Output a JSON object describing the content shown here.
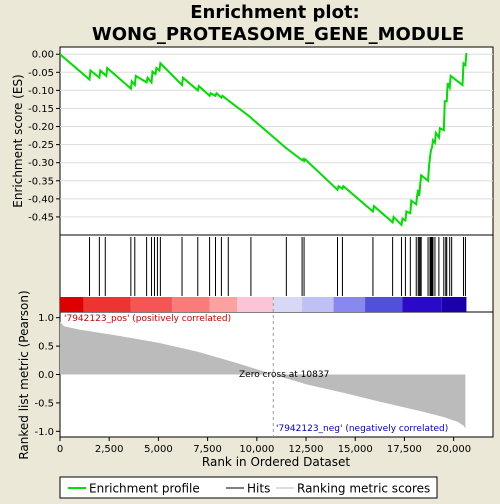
{
  "chart_data": {
    "type": "line",
    "title_line1": "Enrichment plot:",
    "title_line2": "WONG_PROTEASOME_GENE_MODULE",
    "top_panel": {
      "ylabel": "Enrichment score (ES)",
      "ylim": [
        -0.5,
        0.02
      ],
      "yticks": [
        0.0,
        -0.05,
        -0.1,
        -0.15,
        -0.2,
        -0.25,
        -0.3,
        -0.35,
        -0.4,
        -0.45
      ],
      "ytick_labels": [
        "0.00",
        "-0.05",
        "-0.10",
        "-0.15",
        "-0.20",
        "-0.25",
        "-0.30",
        "-0.35",
        "-0.40",
        "-0.45"
      ],
      "line_color": "#00dd00",
      "es_curve": {
        "x": [
          0,
          1500,
          1550,
          2000,
          2050,
          2350,
          2400,
          3600,
          3650,
          3800,
          3850,
          4400,
          4450,
          4650,
          4700,
          4850,
          4900,
          5050,
          5100,
          6200,
          6250,
          7000,
          7050,
          7600,
          7650,
          7900,
          7950,
          8200,
          8250,
          8550,
          8600,
          9700,
          9750,
          11500,
          11550,
          12300,
          12350,
          12400,
          12450,
          14100,
          14150,
          14350,
          14400,
          15900,
          15950,
          16900,
          16950,
          17350,
          17400,
          17550,
          17600,
          17800,
          17850,
          18100,
          18150,
          18200,
          18250,
          18300,
          18350,
          18700,
          18750,
          18800,
          18850,
          18900,
          18950,
          19050,
          19100,
          19250,
          19300,
          19500,
          19550,
          19650,
          19700,
          19800,
          19850,
          20450,
          20500,
          20600,
          20650
        ],
        "y": [
          0.0,
          -0.07,
          -0.045,
          -0.065,
          -0.045,
          -0.06,
          -0.038,
          -0.095,
          -0.075,
          -0.085,
          -0.06,
          -0.078,
          -0.065,
          -0.078,
          -0.048,
          -0.055,
          -0.038,
          -0.045,
          -0.025,
          -0.085,
          -0.065,
          -0.1,
          -0.088,
          -0.115,
          -0.108,
          -0.115,
          -0.108,
          -0.12,
          -0.115,
          -0.128,
          -0.13,
          -0.175,
          -0.178,
          -0.26,
          -0.262,
          -0.293,
          -0.29,
          -0.295,
          -0.29,
          -0.375,
          -0.365,
          -0.372,
          -0.365,
          -0.435,
          -0.42,
          -0.465,
          -0.45,
          -0.472,
          -0.455,
          -0.46,
          -0.435,
          -0.44,
          -0.405,
          -0.415,
          -0.39,
          -0.375,
          -0.392,
          -0.36,
          -0.335,
          -0.35,
          -0.31,
          -0.285,
          -0.265,
          -0.258,
          -0.238,
          -0.245,
          -0.218,
          -0.23,
          -0.205,
          -0.21,
          -0.13,
          -0.13,
          -0.08,
          -0.092,
          -0.06,
          -0.085,
          -0.025,
          -0.03,
          0.003
        ]
      }
    },
    "hits_panel": {
      "hit_positions": [
        1500,
        2000,
        2300,
        3600,
        3800,
        4400,
        4650,
        4800,
        4950,
        5100,
        6200,
        7000,
        7600,
        7900,
        8200,
        8550,
        9700,
        11500,
        12300,
        12400,
        14100,
        14350,
        15900,
        16900,
        17350,
        17550,
        17800,
        18100,
        18200,
        18250,
        18300,
        18350,
        18700,
        18800,
        18850,
        18900,
        18950,
        19050,
        19250,
        19500,
        19600,
        19650,
        19800,
        19900,
        20500,
        20600
      ]
    },
    "rank_panel": {
      "ylabel": "Ranked list metric (Pearson)",
      "ylim": [
        -1.1,
        1.1
      ],
      "yticks": [
        1.0,
        0.5,
        0.0,
        -0.5,
        -1.0
      ],
      "ytick_labels": [
        "1.0",
        "0.5",
        "0.0",
        "-0.5",
        "-1.0"
      ],
      "pos_label": "'7942123_pos' (positively correlated)",
      "neg_label": "'7942123_neg' (negatively correlated)",
      "zero_cross_label": "Zero cross at 10837",
      "zero_cross": 10837,
      "metric_curve": {
        "x": [
          0,
          200,
          1000,
          3000,
          5000,
          7000,
          9000,
          10837,
          12500,
          14500,
          16500,
          18500,
          19500,
          20200,
          20500,
          20600
        ],
        "y": [
          0.93,
          0.85,
          0.79,
          0.68,
          0.56,
          0.4,
          0.2,
          0.0,
          -0.17,
          -0.33,
          -0.5,
          -0.66,
          -0.75,
          -0.83,
          -0.9,
          -0.95
        ]
      }
    },
    "xlabel": "Rank in Ordered Dataset",
    "xlim": [
      0,
      22000
    ],
    "xticks": [
      0,
      2500,
      5000,
      7500,
      10000,
      12500,
      15000,
      17500,
      20000
    ],
    "xtick_labels": [
      "0",
      "2,500",
      "5,000",
      "7,500",
      "10,000",
      "12,500",
      "15,000",
      "17,500",
      "20,000"
    ],
    "n_genes": 20650,
    "legend": {
      "position": "bottom",
      "items": [
        {
          "label": "Enrichment profile",
          "color": "#00dd00"
        },
        {
          "label": "Hits",
          "color": "#000000"
        },
        {
          "label": "Ranking metric scores",
          "color": "#bbbbbb"
        }
      ]
    },
    "colorbar": {
      "segments": [
        {
          "from": 0,
          "to": 1200,
          "color": "#dd0000"
        },
        {
          "from": 1200,
          "to": 3600,
          "color": "#ee3333"
        },
        {
          "from": 3600,
          "to": 5700,
          "color": "#f75555"
        },
        {
          "from": 5700,
          "to": 7600,
          "color": "#fb7a7a"
        },
        {
          "from": 7600,
          "to": 9000,
          "color": "#fda0a0"
        },
        {
          "from": 9000,
          "to": 10837,
          "color": "#fcc4d8"
        },
        {
          "from": 10837,
          "to": 12300,
          "color": "#d8d8f4"
        },
        {
          "from": 12300,
          "to": 13900,
          "color": "#c0c0f4"
        },
        {
          "from": 13900,
          "to": 15500,
          "color": "#8888ee"
        },
        {
          "from": 15500,
          "to": 17400,
          "color": "#5050dd"
        },
        {
          "from": 17400,
          "to": 19400,
          "color": "#2a0ac8"
        },
        {
          "from": 19400,
          "to": 20650,
          "color": "#1a00aa"
        }
      ]
    }
  }
}
